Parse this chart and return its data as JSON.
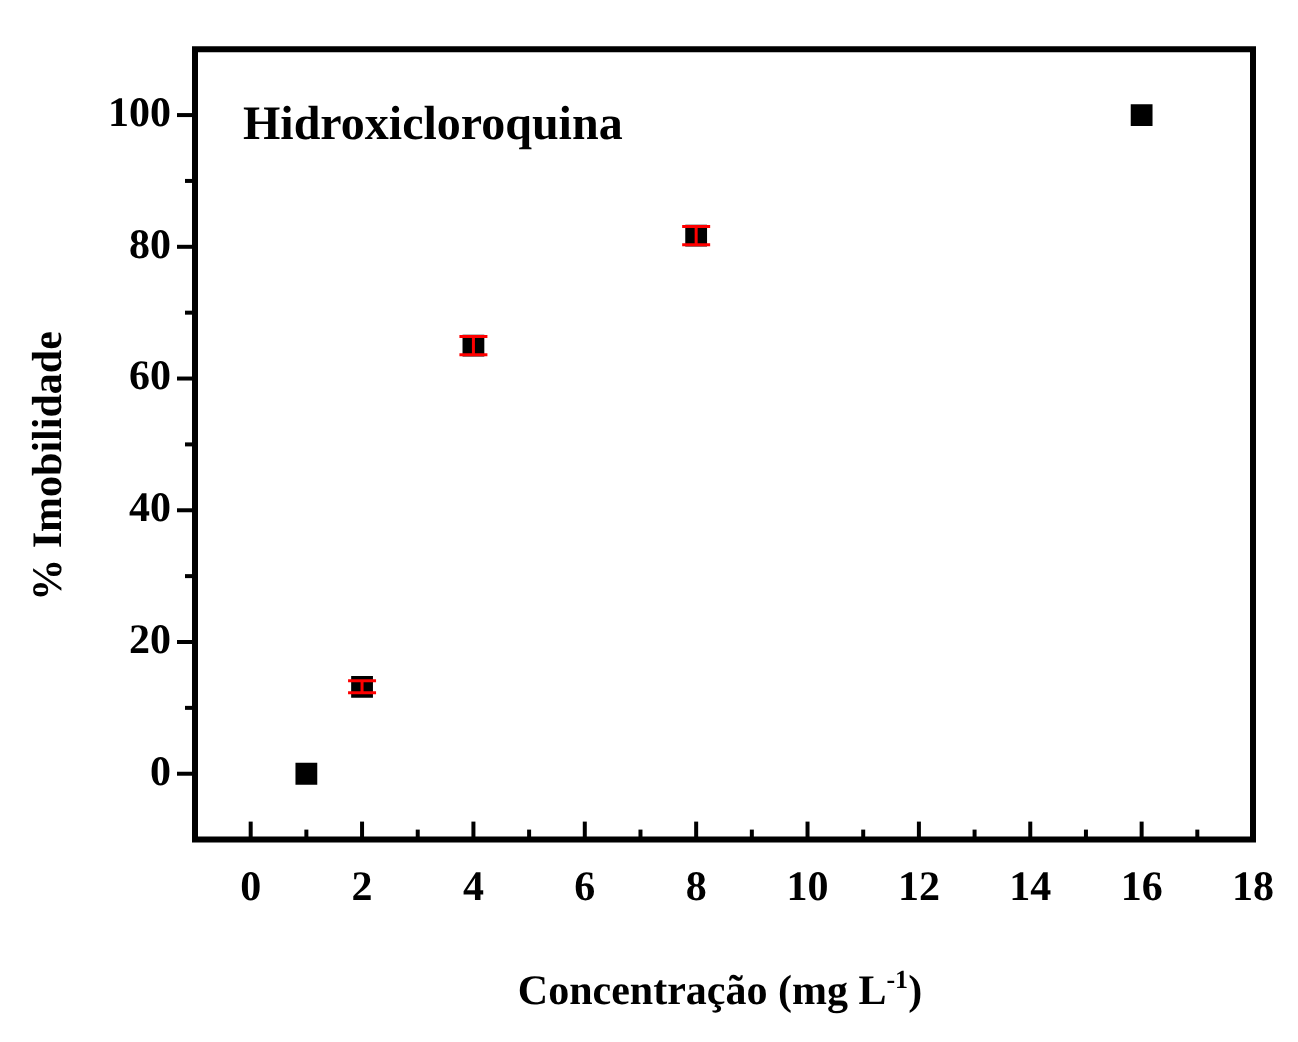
{
  "chart_data": {
    "type": "scatter",
    "title": "Hidroxicloroquina",
    "xlabel": "Concentração (mg L$^{-1}$)",
    "ylabel": "% Imobilidade",
    "x": [
      1,
      2,
      4,
      8,
      16
    ],
    "series": [
      {
        "color": "#000000",
        "values": [
          0,
          13.2,
          65,
          81.7,
          100
        ],
        "errors": [
          null,
          0.9,
          1.4,
          1.4,
          null
        ]
      }
    ],
    "xlim": [
      -1,
      18
    ],
    "xticks": [
      0,
      {
        "value": 1,
        "label": null
      },
      2,
      {
        "value": 3,
        "label": null
      },
      4,
      {
        "value": 5,
        "label": null
      },
      6,
      {
        "value": 7,
        "label": null
      },
      8,
      {
        "value": 9,
        "label": null
      },
      10,
      {
        "value": 11,
        "label": null
      },
      12,
      {
        "value": 13,
        "label": null
      },
      14,
      {
        "value": 15,
        "label": null
      },
      16,
      {
        "value": 17,
        "label": null
      },
      18
    ],
    "ylim": [
      -10,
      110
    ],
    "yticks": [
      0,
      {
        "value": 10,
        "label": null
      },
      20,
      {
        "value": 30,
        "label": null
      },
      40,
      {
        "value": 50,
        "label": null
      },
      60,
      {
        "value": 70,
        "label": null
      },
      80,
      {
        "value": 90,
        "label": null
      },
      100
    ],
    "marker": "square",
    "grid": false,
    "legend": false
  }
}
